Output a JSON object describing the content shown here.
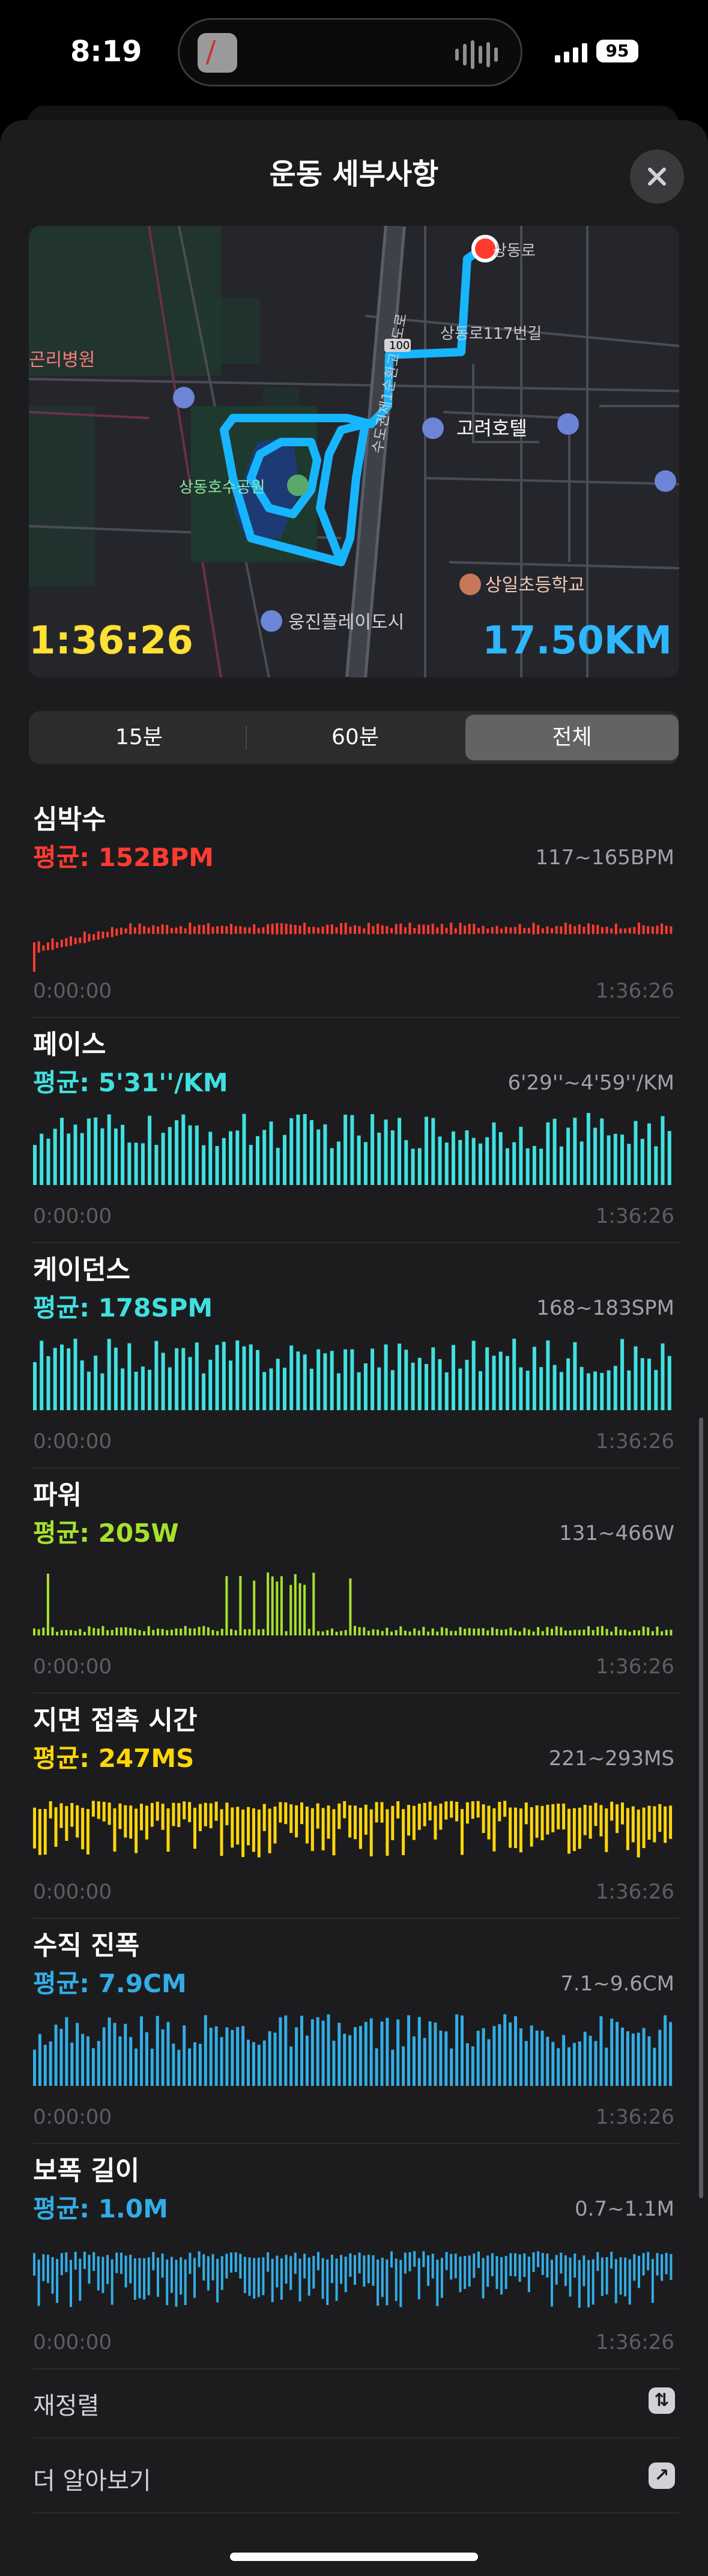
{
  "status_bar": {
    "time": "8:19",
    "battery": "95"
  },
  "sheet": {
    "title": "운동 세부사항",
    "close_icon": "close-icon"
  },
  "map": {
    "duration": "1:36:26",
    "distance": "17.50KM",
    "labels": {
      "hospital": "곤리병원",
      "road1": "상동로117번길",
      "road2": "상동로",
      "hotel": "고려호텔",
      "park": "상동호수공원",
      "school": "상일초등학교",
      "apartment": "웅진플레이도시",
      "highway": "수도권제1순환고속도로",
      "route_no": "100"
    }
  },
  "segments": {
    "items": [
      "15분",
      "60분",
      "전체"
    ],
    "selected": "전체"
  },
  "metrics": [
    {
      "key": "heart",
      "title": "심박수",
      "avg": "평균: 152BPM",
      "range": "117~165BPM",
      "start": "0:00:00",
      "end": "1:36:26",
      "color": "#ff3b30"
    },
    {
      "key": "pace",
      "title": "페이스",
      "avg": "평균: 5'31''/KM",
      "range": "6'29''~4'59''/KM",
      "start": "0:00:00",
      "end": "1:36:26",
      "color": "#40e0e0"
    },
    {
      "key": "cadence",
      "title": "케이던스",
      "avg": "평균: 178SPM",
      "range": "168~183SPM",
      "start": "0:00:00",
      "end": "1:36:26",
      "color": "#40e0e0"
    },
    {
      "key": "power",
      "title": "파워",
      "avg": "평균: 205W",
      "range": "131~466W",
      "start": "0:00:00",
      "end": "1:36:26",
      "color": "#a6e22e"
    },
    {
      "key": "gct",
      "title": "지면 접촉 시간",
      "avg": "평균: 247MS",
      "range": "221~293MS",
      "start": "0:00:00",
      "end": "1:36:26",
      "color": "#ffd60a"
    },
    {
      "key": "vosc",
      "title": "수직 진폭",
      "avg": "평균: 7.9CM",
      "range": "7.1~9.6CM",
      "start": "0:00:00",
      "end": "1:36:26",
      "color": "#32ade6"
    },
    {
      "key": "stride",
      "title": "보폭 길이",
      "avg": "평균: 1.0M",
      "range": "0.7~1.1M",
      "start": "0:00:00",
      "end": "1:36:26",
      "color": "#32ade6"
    }
  ],
  "rows": [
    {
      "label": "재정렬",
      "icon": "reorder-icon"
    },
    {
      "label": "더 알아보기",
      "icon": "external-link-icon"
    }
  ]
}
